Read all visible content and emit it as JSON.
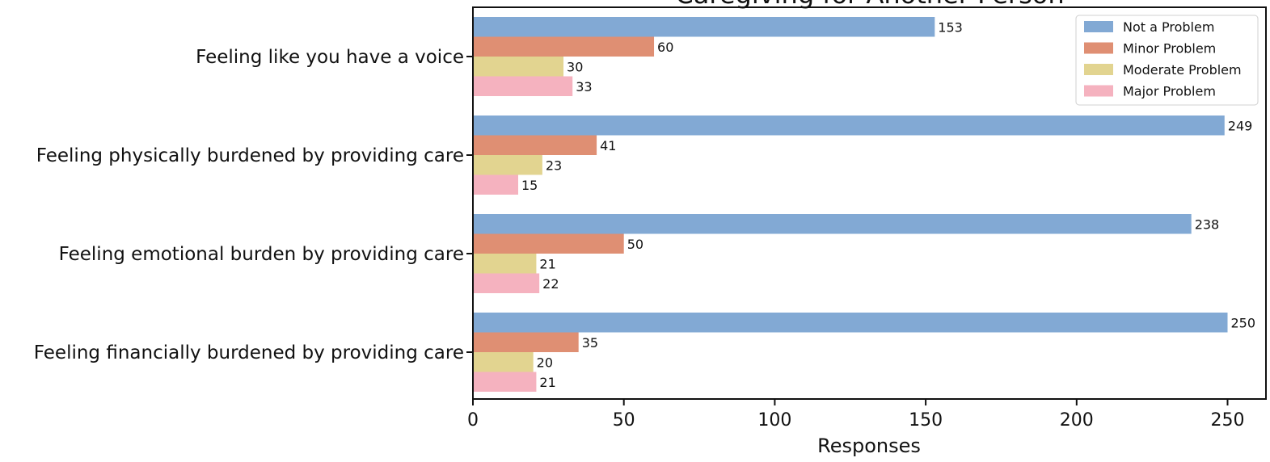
{
  "chart_data": {
    "type": "bar",
    "orientation": "horizontal",
    "title": "Caregiving for Another Person",
    "xlabel": "Responses",
    "ylabel": "",
    "xlim": [
      0,
      262
    ],
    "x_ticks": [
      0,
      50,
      100,
      150,
      200,
      250
    ],
    "grid": false,
    "legend_position": "top-right",
    "categories": [
      "Feeling like you have a voice",
      "Feeling physically burdened by providing care",
      "Feeling emotional burden by providing care",
      "Feeling financially burdened by providing care"
    ],
    "series": [
      {
        "name": "Not a Problem",
        "color": "#82a9d4",
        "values": [
          153,
          249,
          238,
          250
        ]
      },
      {
        "name": "Minor Problem",
        "color": "#df8f73",
        "values": [
          60,
          41,
          50,
          35
        ]
      },
      {
        "name": "Moderate Problem",
        "color": "#e2d490",
        "values": [
          30,
          23,
          21,
          20
        ]
      },
      {
        "name": "Major Problem",
        "color": "#f5b2bf",
        "values": [
          33,
          15,
          22,
          21
        ]
      }
    ]
  }
}
